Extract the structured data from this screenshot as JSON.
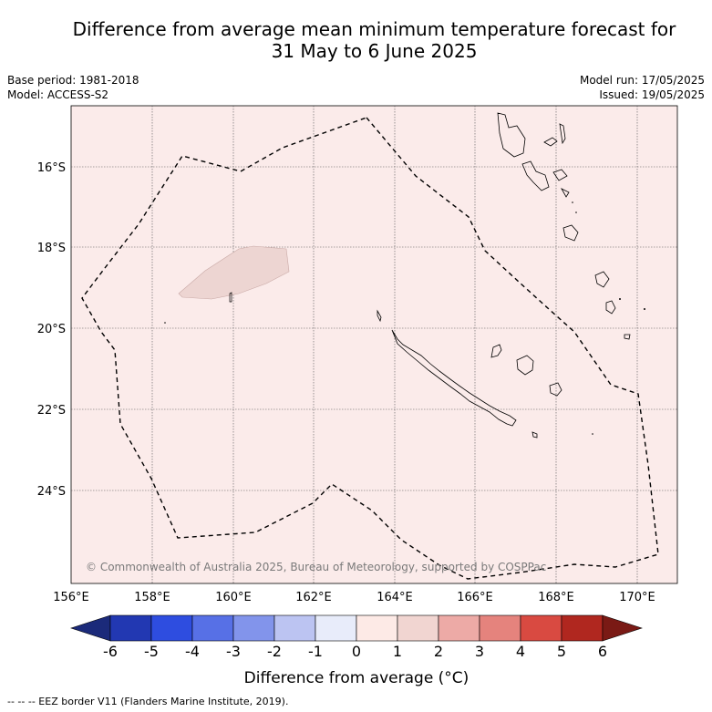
{
  "title_line1": "Difference from average mean minimum temperature forecast for",
  "title_line2": "31 May to 6 June 2025",
  "base_period": "Base period: 1981-2018",
  "model": "Model: ACCESS-S2",
  "model_run": "Model run: 17/05/2025",
  "issued": "Issued: 19/05/2025",
  "copyright": "© Commonwealth of Australia 2025, Bureau of Meteorology, supported by COSPPac",
  "lon_labels": [
    "156°E",
    "158°E",
    "160°E",
    "162°E",
    "164°E",
    "166°E",
    "168°E",
    "170°E"
  ],
  "lat_labels": [
    "16°S",
    "18°S",
    "20°S",
    "22°S",
    "24°S"
  ],
  "colorbar": {
    "label": "Difference from average (°C)",
    "ticks": [
      "-6",
      "-5",
      "-4",
      "-3",
      "-2",
      "-1",
      "0",
      "1",
      "2",
      "3",
      "4",
      "5",
      "6"
    ],
    "colors": [
      "#1b2a7a",
      "#2238b2",
      "#2e4de0",
      "#5770e6",
      "#8294eb",
      "#bcc4f2",
      "#e8ecfa",
      "#fdeae6",
      "#f1d5d1",
      "#edaaa6",
      "#e5837d",
      "#d94a41",
      "#b0271f",
      "#7a1a15"
    ]
  },
  "map_colors": {
    "background": "#fbebea",
    "warm_anomaly": "#edd5d2"
  },
  "eez_legend": "--  --  -- EEZ border V11 (Flanders Marine Institute, 2019)."
}
